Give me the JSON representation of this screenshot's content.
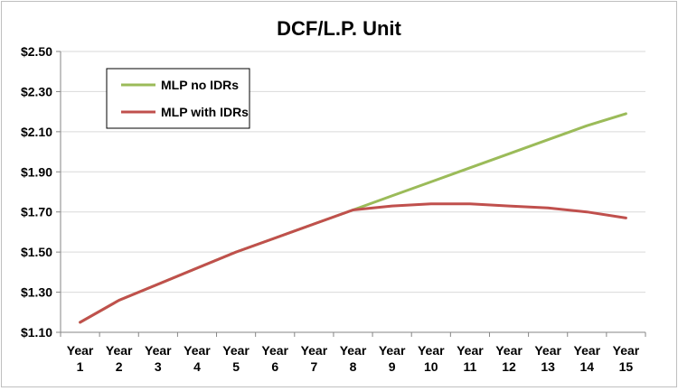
{
  "chart_data": {
    "type": "line",
    "title": "DCF/L.P. Unit",
    "xlabel": "",
    "ylabel": "",
    "ylim": [
      1.1,
      2.5
    ],
    "y_ticks": [
      "$1.10",
      "$1.30",
      "$1.50",
      "$1.70",
      "$1.90",
      "$2.10",
      "$2.30",
      "$2.50"
    ],
    "x_tick_lines": [
      [
        "Year",
        "1"
      ],
      [
        "Year",
        "2"
      ],
      [
        "Year",
        "3"
      ],
      [
        "Year",
        "4"
      ],
      [
        "Year",
        "5"
      ],
      [
        "Year",
        "6"
      ],
      [
        "Year",
        "7"
      ],
      [
        "Year",
        "8"
      ],
      [
        "Year",
        "9"
      ],
      [
        "Year",
        "10"
      ],
      [
        "Year",
        "11"
      ],
      [
        "Year",
        "12"
      ],
      [
        "Year",
        "13"
      ],
      [
        "Year",
        "14"
      ],
      [
        "Year",
        "15"
      ]
    ],
    "grid": "horizontal",
    "legend_position": "top-left",
    "series": [
      {
        "name": "MLP no IDRs",
        "color": "#9bbb59",
        "values": [
          1.15,
          1.26,
          1.34,
          1.42,
          1.5,
          1.57,
          1.64,
          1.71,
          1.78,
          1.85,
          1.92,
          1.99,
          2.06,
          2.13,
          2.19
        ]
      },
      {
        "name": "MLP with IDRs",
        "color": "#c0504d",
        "values": [
          1.15,
          1.26,
          1.34,
          1.42,
          1.5,
          1.57,
          1.64,
          1.71,
          1.73,
          1.74,
          1.74,
          1.73,
          1.72,
          1.7,
          1.67
        ]
      }
    ]
  }
}
